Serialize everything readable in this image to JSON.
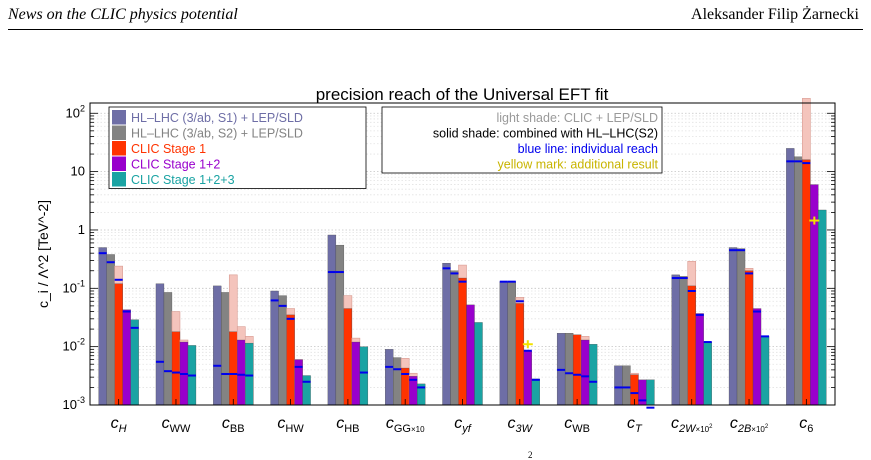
{
  "header": {
    "left": "News on the CLIC physics potential",
    "right": "Aleksander Filip Żarnecki"
  },
  "footer_fragment": "2",
  "colors": {
    "s1": "#6e6ea6",
    "s2": "#838383",
    "st1": "#ff3300",
    "st12": "#9900cc",
    "st123": "#1aa3a3",
    "light": "#f4c4bc",
    "blue": "#0000ee",
    "yellow": "#f2e200"
  },
  "chart_data": {
    "type": "bar",
    "title": "precision reach of the Universal EFT fit",
    "ylabel": "c_i / Λ^2  [TeV^-2]",
    "yscale": "log",
    "ylim": [
      0.001,
      150
    ],
    "yticks": [
      "10^-3",
      "10^-2",
      "10^-1",
      "1",
      "10",
      "10^2"
    ],
    "grid": true,
    "legend_position": "top-left",
    "categories": [
      "c_H",
      "c_WW",
      "c_BB",
      "c_HW",
      "c_HB",
      "c_GG×10",
      "c_yf",
      "c_3W",
      "c_WB",
      "c_T",
      "c_2W×10^2",
      "c_2B×10^2",
      "c_6"
    ],
    "series": [
      {
        "name": "HL–LHC (3/ab, S1) + LEP/SLD",
        "color_key": "s1",
        "values": [
          0.5,
          0.12,
          0.11,
          0.09,
          0.82,
          0.009,
          0.27,
          0.13,
          0.017,
          0.0047,
          0.17,
          0.5,
          25
        ]
      },
      {
        "name": "HL–LHC (3/ab, S2) + LEP/SLD",
        "color_key": "s2",
        "values": [
          0.38,
          0.085,
          0.085,
          0.075,
          0.55,
          0.0065,
          0.2,
          0.13,
          0.017,
          0.0047,
          0.16,
          0.48,
          18
        ]
      },
      {
        "name": "CLIC Stage 1",
        "color_key": "st1",
        "values": [
          0.12,
          0.018,
          0.018,
          0.035,
          0.045,
          0.0043,
          0.15,
          0.055,
          0.016,
          0.0033,
          0.11,
          0.2,
          16
        ]
      },
      {
        "name": "CLIC Stage 1+2",
        "color_key": "st12",
        "values": [
          0.043,
          0.012,
          0.013,
          0.006,
          0.012,
          0.0031,
          0.052,
          0.0085,
          0.013,
          0.0027,
          0.037,
          0.045,
          6
        ]
      },
      {
        "name": "CLIC Stage 1+2+3",
        "color_key": "st123",
        "values": [
          0.029,
          0.0105,
          0.0115,
          0.0032,
          0.01,
          0.0023,
          0.026,
          0.0028,
          0.011,
          0.0027,
          0.012,
          0.015,
          2.2
        ]
      }
    ],
    "light_shade_clic_lep": [
      [
        null,
        null,
        0.24,
        null,
        null
      ],
      [
        null,
        null,
        0.04,
        0.013,
        null
      ],
      [
        null,
        null,
        0.17,
        0.022,
        0.015
      ],
      [
        null,
        null,
        0.045,
        0.006,
        null
      ],
      [
        null,
        null,
        0.075,
        0.014,
        null
      ],
      [
        null,
        null,
        0.0063,
        0.0035,
        null
      ],
      [
        null,
        null,
        0.25,
        null,
        null
      ],
      [
        null,
        null,
        0.07,
        null,
        null
      ],
      [
        null,
        null,
        null,
        0.015,
        null
      ],
      [
        null,
        null,
        0.0035,
        null,
        null
      ],
      [
        null,
        null,
        0.29,
        null,
        null
      ],
      [
        null,
        null,
        0.22,
        null,
        null
      ],
      [
        null,
        null,
        180,
        null,
        null
      ]
    ],
    "individual_reach": [
      [
        0.4,
        0.28,
        0.14,
        0.04,
        0.021
      ],
      [
        0.0055,
        0.0038,
        0.0036,
        0.0034,
        0.0032
      ],
      [
        0.0047,
        0.0034,
        0.0034,
        0.0033,
        0.0032
      ],
      [
        0.062,
        0.05,
        0.03,
        0.0045,
        0.0025
      ],
      [
        0.19,
        0.19,
        null,
        null,
        0.0036
      ],
      [
        0.0045,
        0.0041,
        0.0034,
        0.0027,
        0.002
      ],
      [
        0.22,
        0.18,
        0.13,
        null,
        null
      ],
      [
        0.13,
        0.13,
        0.06,
        0.0085,
        0.0027
      ],
      [
        0.004,
        0.0035,
        0.0033,
        0.0031,
        0.0025
      ],
      [
        0.002,
        0.002,
        0.0016,
        0.0012,
        0.0009
      ],
      [
        0.15,
        0.15,
        0.09,
        0.035,
        0.012
      ],
      [
        0.45,
        0.45,
        0.18,
        0.04,
        0.015
      ],
      [
        15,
        15,
        14,
        null,
        null
      ]
    ],
    "additional_result": [
      null,
      null,
      null,
      null,
      null,
      null,
      null,
      0.011,
      null,
      null,
      null,
      null,
      1.45
    ],
    "legend_right": [
      {
        "text": "light shade: CLIC + LEP/SLD",
        "color_key": "light_text"
      },
      {
        "text": "solid shade: combined with HL–LHC(S2)",
        "color_key": "black"
      },
      {
        "text": "blue line: individual reach",
        "color_key": "blue"
      },
      {
        "text": "yellow mark: additional result",
        "color_key": "yellow_text"
      }
    ]
  }
}
